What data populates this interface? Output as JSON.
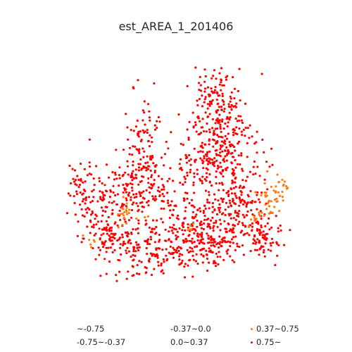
{
  "title": "est_AREA_1_201406",
  "legend": {
    "items": [
      {
        "label": "~-0.75",
        "color": null
      },
      {
        "label": "-0.75~-0.37",
        "color": null
      },
      {
        "label": "-0.37~0.0",
        "color": null
      },
      {
        "label": "0.0~0.37",
        "color": null
      },
      {
        "label": "0.37~0.75",
        "color": "#ff7a10"
      },
      {
        "label": "0.75~",
        "color": "#ff0000"
      }
    ]
  },
  "colors": {
    "high": "#ff0000",
    "mid_high": "#ff7a10"
  }
}
